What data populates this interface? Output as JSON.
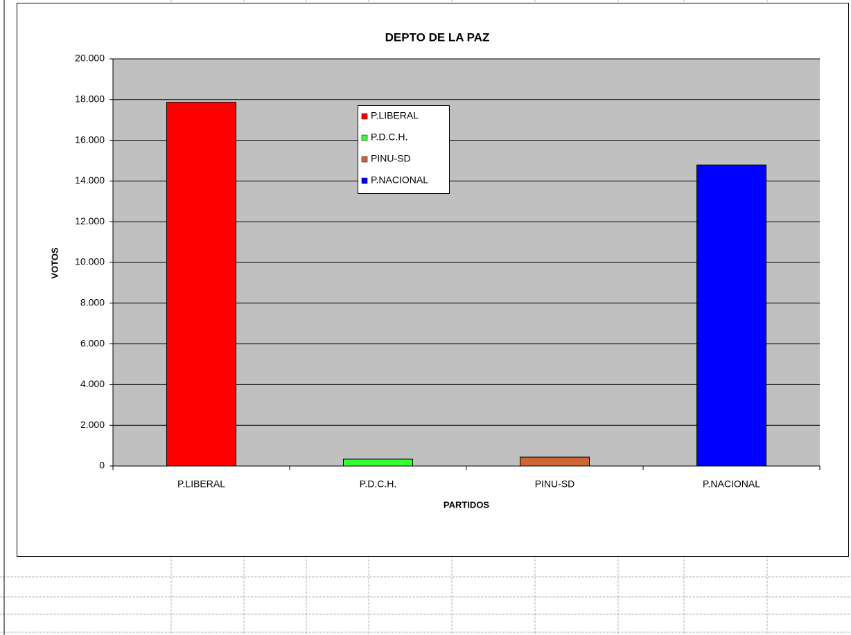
{
  "chart_data": {
    "type": "bar",
    "title": "DEPTO DE LA PAZ",
    "xlabel": "PARTIDOS",
    "ylabel": "VOTOS",
    "categories": [
      "P.LIBERAL",
      "P.D.C.H.",
      "PINU-SD",
      "P.NACIONAL"
    ],
    "values": [
      17870,
      340,
      440,
      14790
    ],
    "colors": [
      "#ff0000",
      "#33ff33",
      "#cc6633",
      "#0000ff"
    ],
    "ylim": [
      0,
      20000
    ],
    "yticks": [
      0,
      {
        "value": 2000,
        "label": "2.000"
      },
      {
        "value": 4000,
        "label": "4.000"
      },
      {
        "value": 6000,
        "label": "6.000"
      },
      {
        "value": 8000,
        "label": "8.000"
      },
      {
        "value": 10000,
        "label": "10.000"
      },
      {
        "value": 12000,
        "label": "12.000"
      },
      {
        "value": 14000,
        "label": "14.000"
      },
      {
        "value": 16000,
        "label": "16.000"
      },
      {
        "value": 18000,
        "label": "18.000"
      },
      {
        "value": 20000,
        "label": "20.000"
      }
    ],
    "grid": true
  }
}
